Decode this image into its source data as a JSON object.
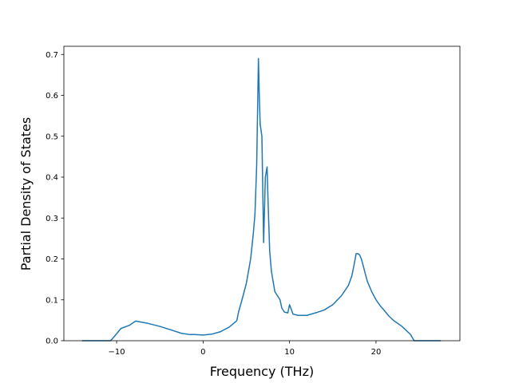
{
  "chart_data": {
    "type": "line",
    "title": "",
    "xlabel": "Frequency (THz)",
    "ylabel": "Partial Density of States",
    "xlim": [
      -16.1,
      29.7
    ],
    "ylim": [
      0,
      0.72
    ],
    "xticks": [
      -10,
      0,
      10,
      20
    ],
    "yticks": [
      0.0,
      0.1,
      0.2,
      0.3,
      0.4,
      0.5,
      0.6,
      0.7
    ],
    "xtick_labels": [
      "−10",
      "0",
      "10",
      "20"
    ],
    "ytick_labels": [
      "0.0",
      "0.1",
      "0.2",
      "0.3",
      "0.4",
      "0.5",
      "0.6",
      "0.7"
    ],
    "grid": false,
    "legend": "none",
    "series": [
      {
        "color": "#1f77b4",
        "x": [
          -14.0,
          -11.0,
          -10.7,
          -10.2,
          -9.5,
          -8.5,
          -7.8,
          -6.5,
          -5.0,
          -3.5,
          -2.5,
          -1.5,
          -1.0,
          0.0,
          1.0,
          2.0,
          3.0,
          3.9,
          4.1,
          4.5,
          5.0,
          5.5,
          5.8,
          6.0,
          6.2,
          6.4,
          6.5,
          6.6,
          6.8,
          7.0,
          7.2,
          7.4,
          7.5,
          7.7,
          7.9,
          8.3,
          8.9,
          9.1,
          9.4,
          9.8,
          10.0,
          10.4,
          11.0,
          12.0,
          13.0,
          14.0,
          15.0,
          16.0,
          16.8,
          17.2,
          17.5,
          17.7,
          17.9,
          18.1,
          18.3,
          18.5,
          18.8,
          19.0,
          19.5,
          20.0,
          20.5,
          21.0,
          21.5,
          22.0,
          23.0,
          24.0,
          24.4,
          27.5
        ],
        "y": [
          0.0,
          0.0,
          0.0,
          0.012,
          0.03,
          0.038,
          0.048,
          0.043,
          0.035,
          0.025,
          0.018,
          0.015,
          0.015,
          0.014,
          0.016,
          0.022,
          0.033,
          0.049,
          0.07,
          0.1,
          0.14,
          0.2,
          0.26,
          0.31,
          0.43,
          0.69,
          0.6,
          0.53,
          0.5,
          0.24,
          0.4,
          0.425,
          0.35,
          0.22,
          0.17,
          0.12,
          0.1,
          0.08,
          0.07,
          0.068,
          0.088,
          0.065,
          0.062,
          0.062,
          0.068,
          0.075,
          0.088,
          0.11,
          0.135,
          0.158,
          0.19,
          0.213,
          0.213,
          0.21,
          0.2,
          0.185,
          0.16,
          0.145,
          0.12,
          0.1,
          0.085,
          0.073,
          0.06,
          0.05,
          0.035,
          0.015,
          0.0,
          0.0
        ]
      }
    ]
  }
}
